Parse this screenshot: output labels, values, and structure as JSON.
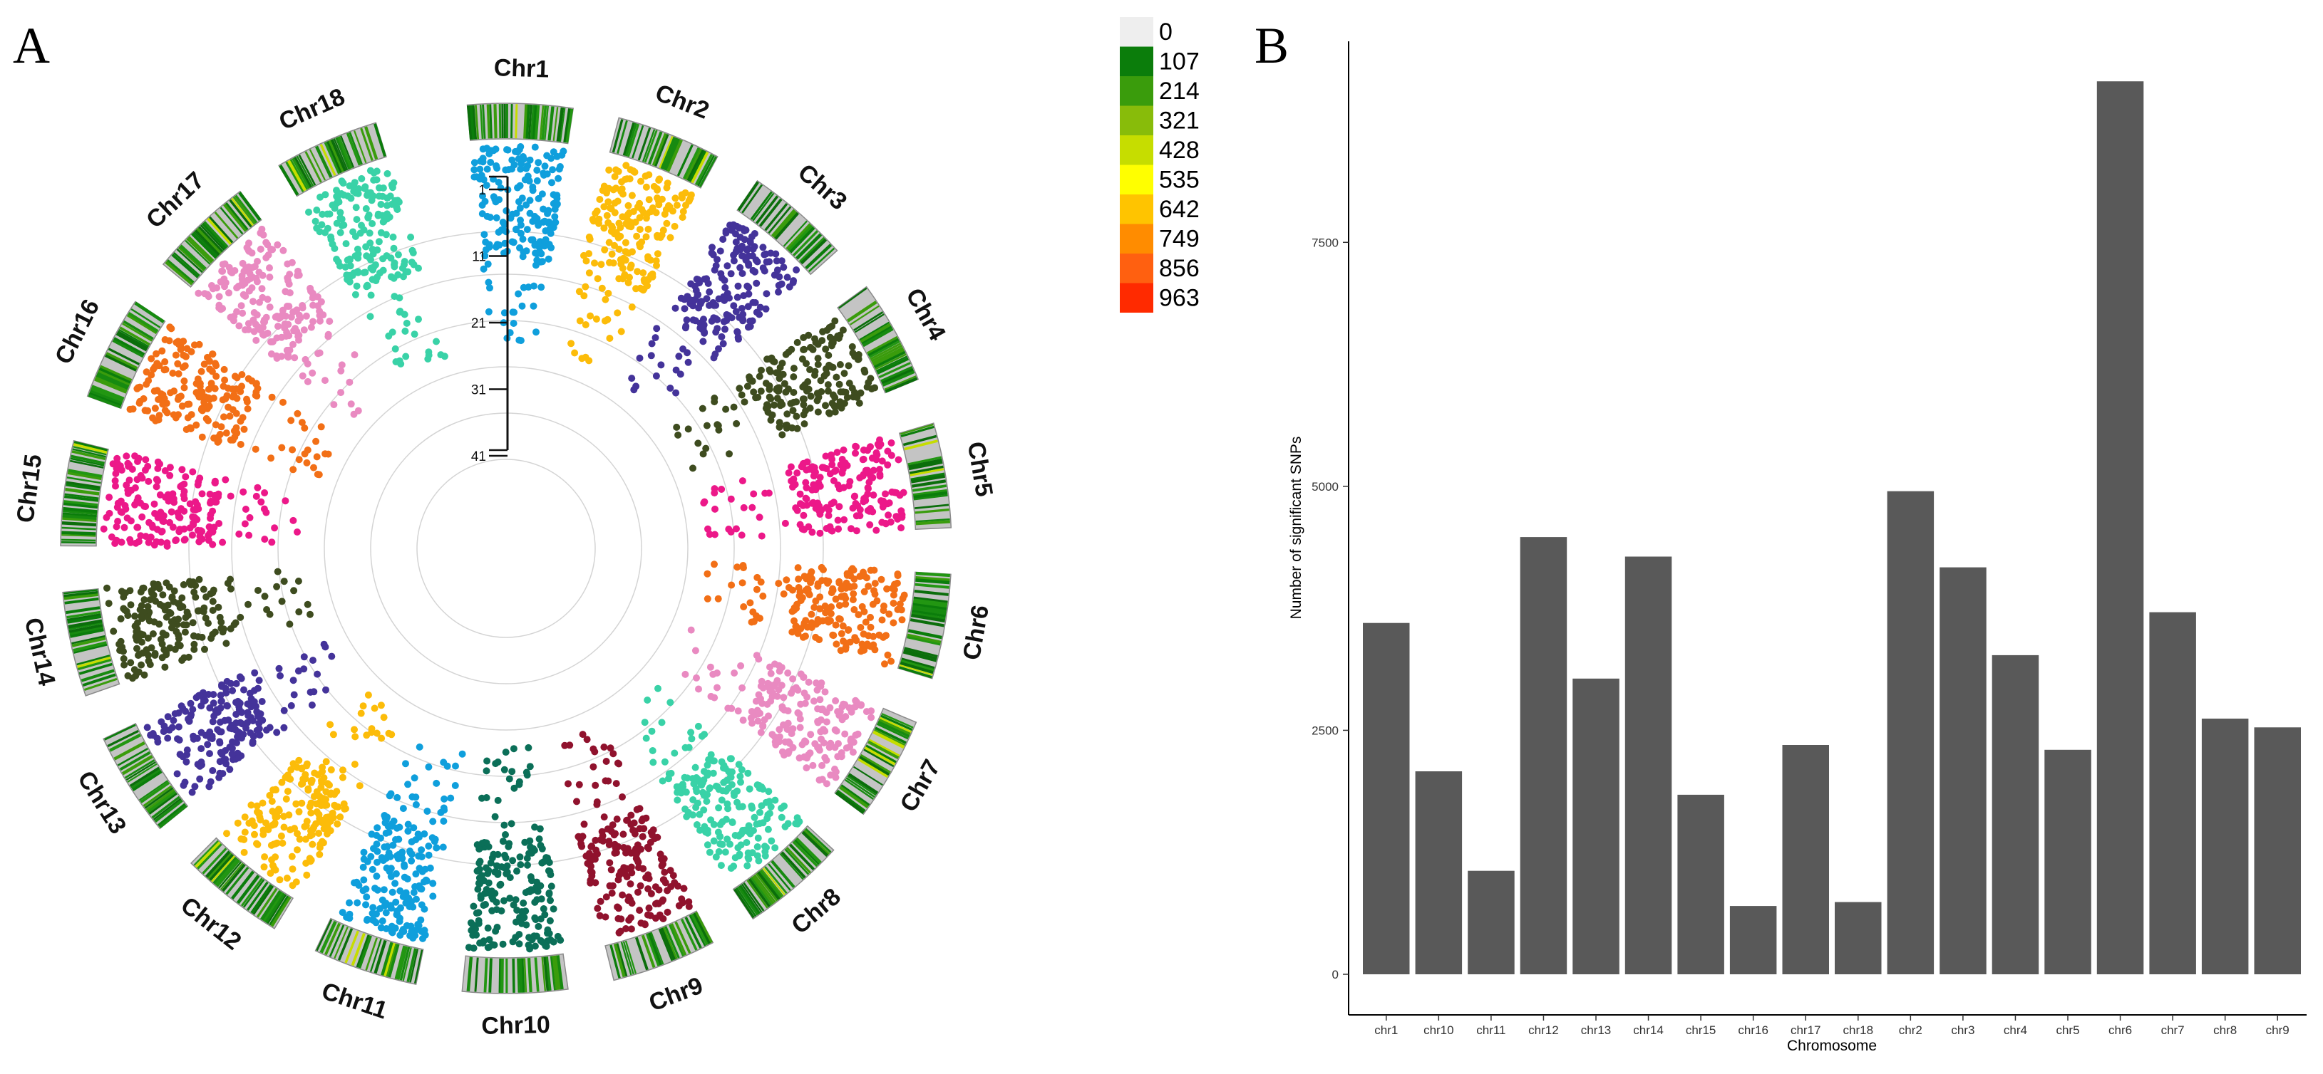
{
  "panel_a": {
    "letter": "A",
    "chromosomes": [
      {
        "label": "Chr1",
        "color": "#0f9fdc"
      },
      {
        "label": "Chr2",
        "color": "#fcbc09"
      },
      {
        "label": "Chr3",
        "color": "#44339a"
      },
      {
        "label": "Chr4",
        "color": "#3e4c1f"
      },
      {
        "label": "Chr5",
        "color": "#ec1889"
      },
      {
        "label": "Chr6",
        "color": "#f26f16"
      },
      {
        "label": "Chr7",
        "color": "#e98ac1"
      },
      {
        "label": "Chr8",
        "color": "#39d2a7"
      },
      {
        "label": "Chr9",
        "color": "#90122d"
      },
      {
        "label": "Chr10",
        "color": "#0b6f58"
      },
      {
        "label": "Chr11",
        "color": "#0f9fdc"
      },
      {
        "label": "Chr12",
        "color": "#fcbc09"
      },
      {
        "label": "Chr13",
        "color": "#44339a"
      },
      {
        "label": "Chr14",
        "color": "#3e4c1f"
      },
      {
        "label": "Chr15",
        "color": "#ec1889"
      },
      {
        "label": "Chr16",
        "color": "#f26f16"
      },
      {
        "label": "Chr17",
        "color": "#e98ac1"
      },
      {
        "label": "Chr18",
        "color": "#39d2a7"
      }
    ],
    "radial_ticks": [
      "1",
      "11",
      "21",
      "31",
      "41"
    ],
    "density_legend": [
      {
        "label": "0",
        "color": "#eeeeee"
      },
      {
        "label": "107",
        "color": "#0b7d0b"
      },
      {
        "label": "214",
        "color": "#3a9c0c"
      },
      {
        "label": "321",
        "color": "#88bc0a"
      },
      {
        "label": "428",
        "color": "#c6dd00"
      },
      {
        "label": "535",
        "color": "#ffff00"
      },
      {
        "label": "642",
        "color": "#ffc400"
      },
      {
        "label": "749",
        "color": "#ff8c00"
      },
      {
        "label": "856",
        "color": "#ff6010"
      },
      {
        "label": "963",
        "color": "#ff2a00"
      }
    ]
  },
  "chart_data": {
    "type": "bar",
    "title": "",
    "panel_letter": "B",
    "xlabel": "Chromosome",
    "ylabel": "Number of significant SNPs",
    "categories": [
      "chr1",
      "chr10",
      "chr11",
      "chr12",
      "chr13",
      "chr14",
      "chr15",
      "chr16",
      "chr17",
      "chr18",
      "chr2",
      "chr3",
      "chr4",
      "chr5",
      "chr6",
      "chr7",
      "chr8",
      "chr9"
    ],
    "values": [
      3600,
      2080,
      1060,
      4480,
      3030,
      4280,
      1840,
      700,
      2350,
      740,
      4950,
      4170,
      3270,
      2300,
      9150,
      3710,
      2620,
      2530
    ],
    "yticks": [
      "0",
      "2500",
      "5000",
      "7500"
    ],
    "ylim": [
      0,
      9560
    ],
    "bar_color": "#595959",
    "grid": false,
    "legend": "none"
  }
}
